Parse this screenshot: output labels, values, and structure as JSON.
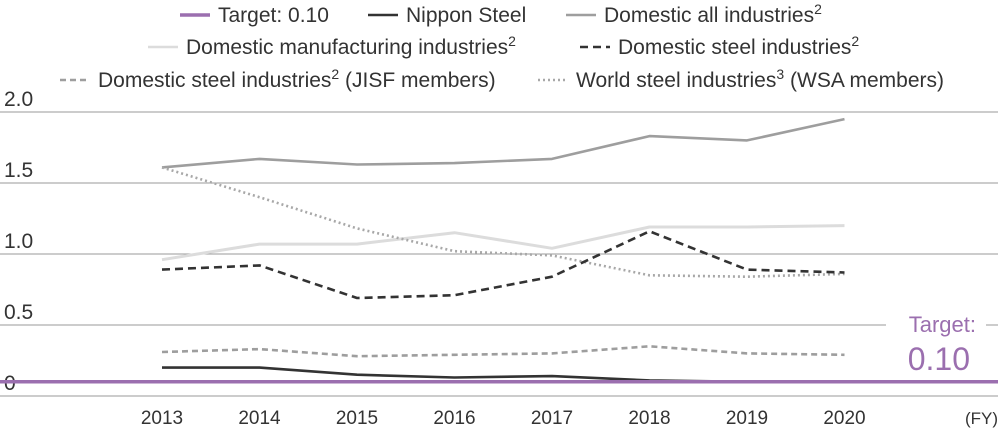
{
  "chart_data": {
    "type": "line",
    "title": "",
    "xlabel": "(FY)",
    "ylabel": "",
    "ylim": [
      0,
      2.0
    ],
    "yticks": [
      {
        "value": 0,
        "label": "0"
      },
      {
        "value": 0.5,
        "label": "0.5"
      },
      {
        "value": 1.0,
        "label": "1.0"
      },
      {
        "value": 1.5,
        "label": "1.5"
      },
      {
        "value": 2.0,
        "label": "2.0"
      }
    ],
    "x": [
      "2013",
      "2014",
      "2015",
      "2016",
      "2017",
      "2018",
      "2019",
      "2020"
    ],
    "series": [
      {
        "name": "Target: 0.10",
        "legend_label": "Target: 0.10",
        "sup": "",
        "color": "#9b6faf",
        "dash": "",
        "values": [
          0.1,
          0.1,
          0.1,
          0.1,
          0.1,
          0.1,
          0.1,
          0.1
        ]
      },
      {
        "name": "Nippon Steel",
        "legend_label": "Nippon Steel",
        "sup": "",
        "color": "#333333",
        "dash": "",
        "values": [
          0.2,
          0.2,
          0.15,
          0.13,
          0.14,
          0.11,
          0.1,
          0.1
        ]
      },
      {
        "name": "Domestic all industries",
        "legend_label": "Domestic all industries",
        "sup": "2",
        "color": "#9e9e9e",
        "dash": "",
        "values": [
          1.61,
          1.67,
          1.63,
          1.64,
          1.67,
          1.83,
          1.8,
          1.95
        ]
      },
      {
        "name": "Domestic manufacturing industries",
        "legend_label": "Domestic manufacturing industries",
        "sup": "2",
        "color": "#dcdcdc",
        "dash": "",
        "values": [
          0.96,
          1.07,
          1.07,
          1.15,
          1.04,
          1.19,
          1.19,
          1.2
        ]
      },
      {
        "name": "Domestic steel industries",
        "legend_label": "Domestic steel industries",
        "sup": "2",
        "color": "#333333",
        "dash": "8,5",
        "values": [
          0.89,
          0.92,
          0.69,
          0.71,
          0.84,
          1.16,
          0.89,
          0.87
        ]
      },
      {
        "name": "Domestic steel industries (JISF members)",
        "legend_label": "Domestic steel industries",
        "sup": "2",
        "suffix": " (JISF members)",
        "color": "#9e9e9e",
        "dash": "6,4",
        "values": [
          0.31,
          0.33,
          0.28,
          0.29,
          0.3,
          0.35,
          0.3,
          0.29
        ]
      },
      {
        "name": "World steel industries (WSA members)",
        "legend_label": "World steel industries",
        "sup": "3",
        "suffix": " (WSA members)",
        "color": "#a8a8a8",
        "dash": "2,3",
        "values": [
          1.61,
          1.4,
          1.18,
          1.02,
          0.99,
          0.85,
          0.84,
          0.86
        ]
      }
    ],
    "annotation": {
      "label": "Target:",
      "value": "0.10",
      "color": "#9b6faf"
    }
  }
}
